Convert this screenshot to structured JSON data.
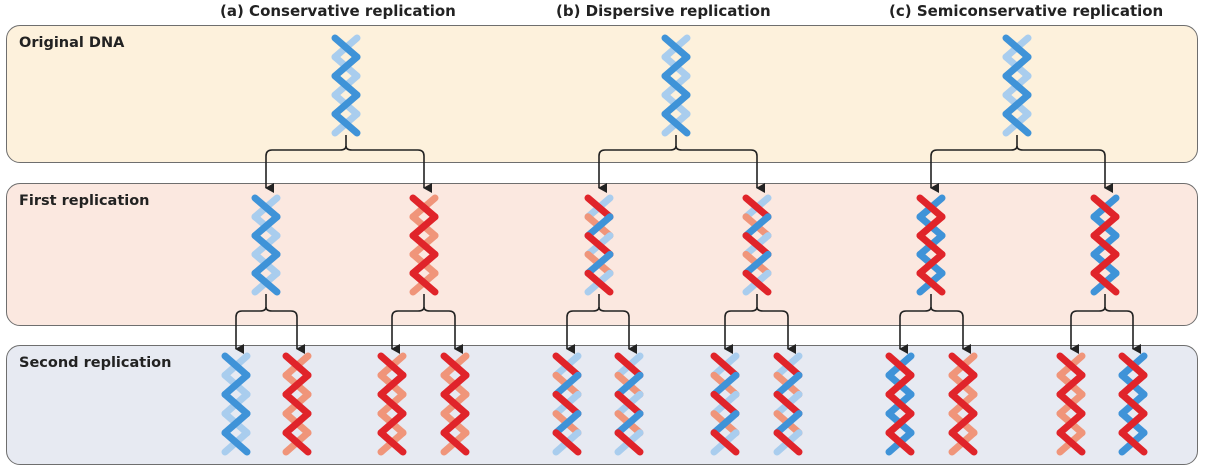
{
  "headers": {
    "conservative": "(a)  Conservative replication",
    "dispersive": "(b)  Dispersive replication",
    "semiconservative": "(c)  Semiconservative replication"
  },
  "rows": {
    "original": "Original DNA",
    "first": "First replication",
    "second": "Second replication"
  },
  "colors": {
    "original_strand": "#3f93d8",
    "original_strand_light": "#a9cdee",
    "new_strand": "#e0242a",
    "new_strand_light": "#f0957a",
    "row_original_bg": "#fdf1dc",
    "row_first_bg": "#fbe8e0",
    "row_second_bg": "#e7eaf2",
    "arrow": "#222222"
  },
  "helices": {
    "conservative": {
      "original": [
        "B"
      ],
      "first": [
        "B",
        "R"
      ],
      "second": [
        "B",
        "R",
        "R",
        "R"
      ]
    },
    "dispersive": {
      "original": [
        "B"
      ],
      "first": [
        "D",
        "D"
      ],
      "second": [
        "D",
        "D",
        "D",
        "D"
      ]
    },
    "semiconservative": {
      "original": [
        "B"
      ],
      "first": [
        "H",
        "H"
      ],
      "second": [
        "H",
        "R",
        "R",
        "H"
      ]
    }
  }
}
